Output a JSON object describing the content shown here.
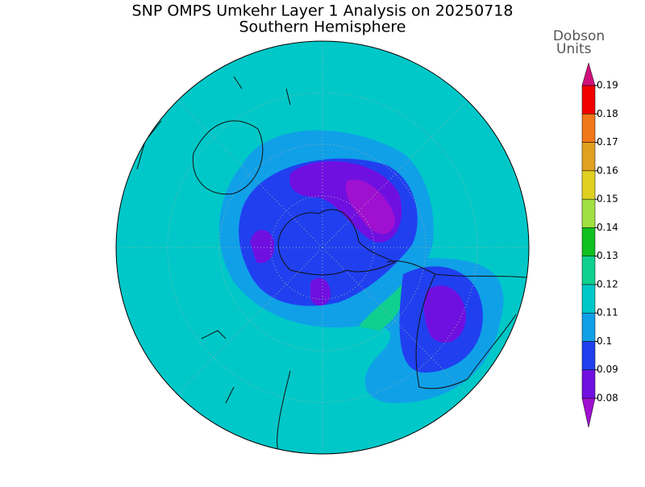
{
  "title": "SNP OMPS Umkehr Layer 1 Analysis on 20250718",
  "subtitle": "Southern Hemisphere",
  "colorbar": {
    "label_lines": [
      "Dobson",
      "Units"
    ],
    "ticks": [
      0.08,
      0.09,
      0.1,
      0.11,
      0.12,
      0.13,
      0.14,
      0.15,
      0.16,
      0.17,
      0.18,
      0.19
    ],
    "under_color": "#a010d0",
    "colors": [
      "#7010e0",
      "#2040f0",
      "#10a0e8",
      "#00c8c8",
      "#10d090",
      "#10c020",
      "#a0e040",
      "#e0d020",
      "#e0a020",
      "#f07818",
      "#f00000"
    ],
    "over_color": "#d0107a"
  }
}
